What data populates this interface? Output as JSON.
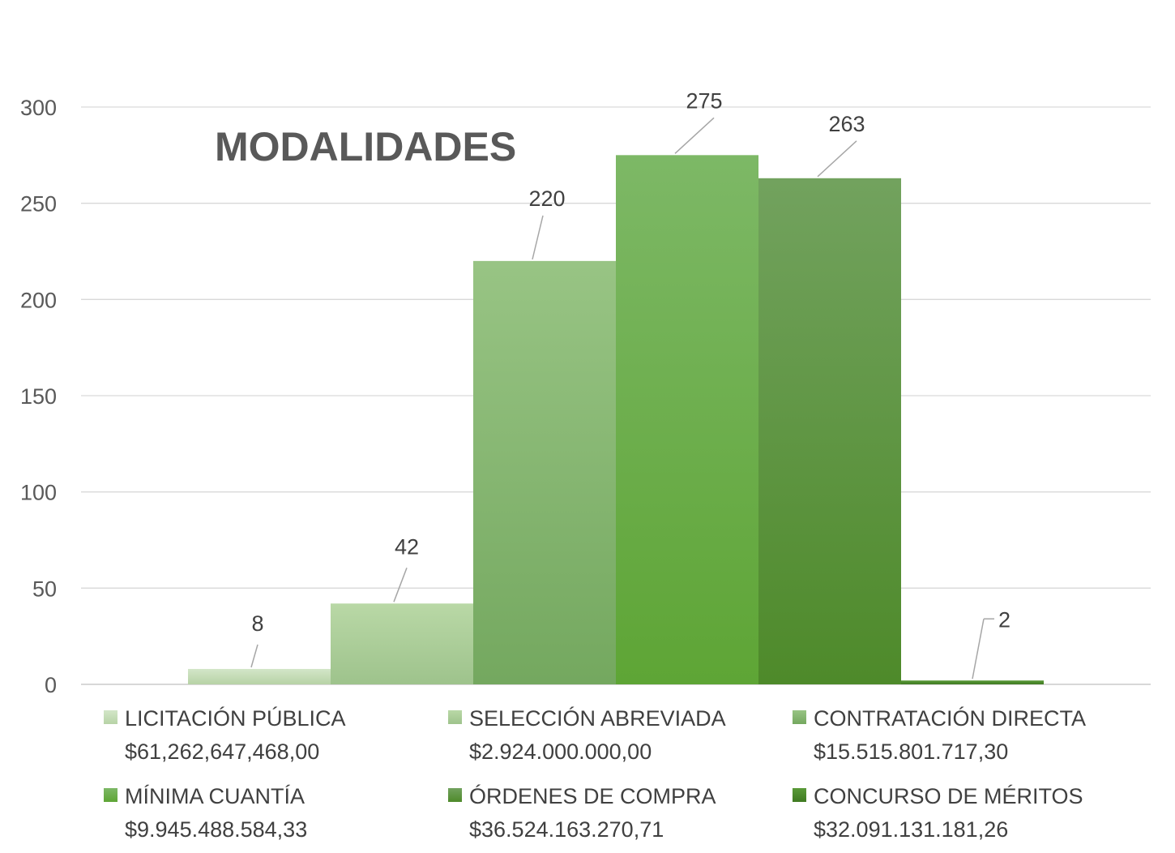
{
  "chart_data": {
    "type": "bar",
    "title": "MODALIDADES",
    "xlabel": "",
    "ylabel": "",
    "ylim": [
      0,
      300
    ],
    "yticks": [
      0,
      50,
      100,
      150,
      200,
      250,
      300
    ],
    "grid": true,
    "legend_position": "bottom",
    "series": [
      {
        "name": "LICITACIÓN PÚBLICA",
        "amount": "$61,262,647,468,00",
        "value": 8,
        "color_top": "#d3e6c8",
        "color_bottom": "#b7d3a6"
      },
      {
        "name": "SELECCIÓN ABREVIADA",
        "amount": "$2.924.000.000,00",
        "value": 42,
        "color_top": "#b9d8a6",
        "color_bottom": "#9ec38c"
      },
      {
        "name": "CONTRATACIÓN DIRECTA",
        "amount": "$15.515.801.717,30",
        "value": 220,
        "color_top": "#98c484",
        "color_bottom": "#74a85f"
      },
      {
        "name": "MÍNIMA CUANTÍA",
        "amount": "$9.945.488.584,33",
        "value": 275,
        "color_top": "#7db866",
        "color_bottom": "#5ea535"
      },
      {
        "name": "ÓRDENES DE COMPRA",
        "amount": "$36.524.163.270,71",
        "value": 263,
        "color_top": "#72a25e",
        "color_bottom": "#4e8a2a"
      },
      {
        "name": "CONCURSO DE MÉRITOS",
        "amount": "$32.091.131.181,26",
        "value": 2,
        "color_top": "#5a9a38",
        "color_bottom": "#3f7a22"
      }
    ]
  }
}
